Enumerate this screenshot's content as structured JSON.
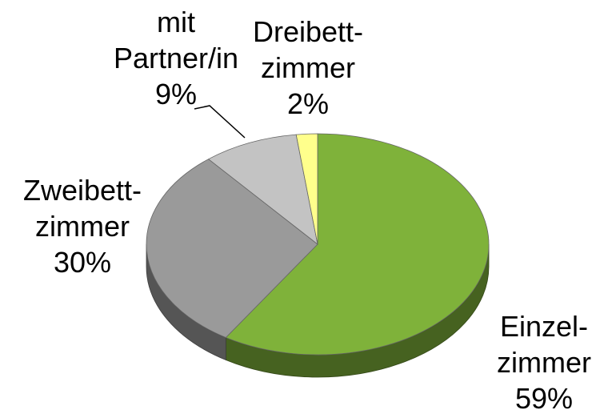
{
  "chart_data": {
    "type": "pie3d",
    "categories": [
      "Einzel-\nzimmer",
      "Zweibett-\nzimmer",
      "mit\nPartner/in",
      "Dreibett-\nzimmer"
    ],
    "values": [
      59,
      30,
      9,
      2
    ],
    "value_labels": [
      "59%",
      "30%",
      "9%",
      "2%"
    ],
    "colors": [
      "#7fb23a",
      "#9a9a9a",
      "#c3c3c3",
      "#ffff8c"
    ]
  }
}
